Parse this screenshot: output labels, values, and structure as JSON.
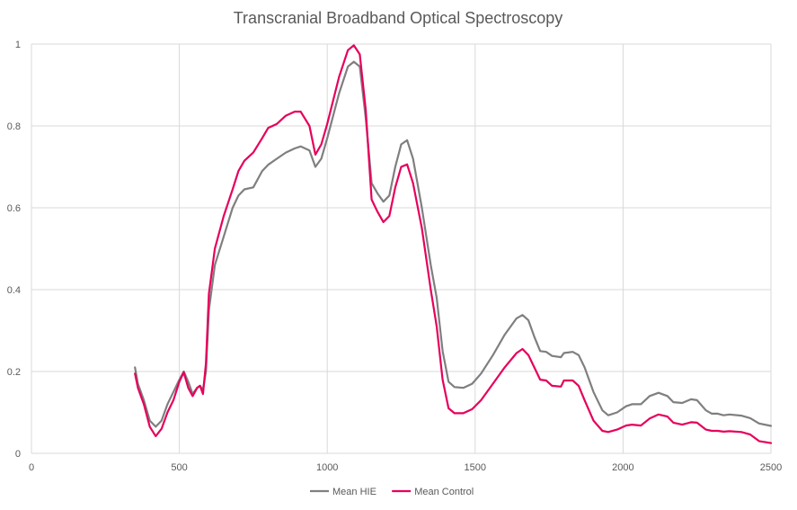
{
  "chart_data": {
    "type": "line",
    "title": "Transcranial Broadband Optical Spectroscopy",
    "xlabel": "",
    "ylabel": "",
    "xlim": [
      0,
      2500
    ],
    "ylim": [
      0,
      1
    ],
    "x_ticks": [
      0,
      500,
      1000,
      1500,
      2000,
      2500
    ],
    "y_ticks": [
      0,
      0.2,
      0.4,
      0.6,
      0.8,
      1
    ],
    "x_tick_labels": [
      "0",
      "500",
      "1000",
      "1500",
      "2000",
      "2500"
    ],
    "y_tick_labels": [
      "0",
      "0.2",
      "0.4",
      "0.6",
      "0.8",
      "1"
    ],
    "grid": true,
    "legend_position": "bottom",
    "series": [
      {
        "name": "Mean HIE",
        "color": "#7f7f7f",
        "points": [
          [
            350,
            0.21
          ],
          [
            360,
            0.17
          ],
          [
            380,
            0.13
          ],
          [
            400,
            0.08
          ],
          [
            420,
            0.065
          ],
          [
            440,
            0.08
          ],
          [
            460,
            0.12
          ],
          [
            480,
            0.15
          ],
          [
            500,
            0.18
          ],
          [
            515,
            0.2
          ],
          [
            530,
            0.175
          ],
          [
            545,
            0.145
          ],
          [
            560,
            0.16
          ],
          [
            570,
            0.165
          ],
          [
            580,
            0.155
          ],
          [
            590,
            0.2
          ],
          [
            600,
            0.35
          ],
          [
            620,
            0.46
          ],
          [
            650,
            0.53
          ],
          [
            680,
            0.6
          ],
          [
            700,
            0.63
          ],
          [
            720,
            0.645
          ],
          [
            750,
            0.65
          ],
          [
            780,
            0.69
          ],
          [
            800,
            0.705
          ],
          [
            830,
            0.72
          ],
          [
            860,
            0.735
          ],
          [
            890,
            0.745
          ],
          [
            910,
            0.75
          ],
          [
            940,
            0.74
          ],
          [
            960,
            0.7
          ],
          [
            980,
            0.72
          ],
          [
            1000,
            0.77
          ],
          [
            1040,
            0.88
          ],
          [
            1070,
            0.945
          ],
          [
            1090,
            0.957
          ],
          [
            1110,
            0.945
          ],
          [
            1130,
            0.82
          ],
          [
            1150,
            0.66
          ],
          [
            1170,
            0.635
          ],
          [
            1190,
            0.615
          ],
          [
            1210,
            0.63
          ],
          [
            1230,
            0.7
          ],
          [
            1250,
            0.755
          ],
          [
            1270,
            0.765
          ],
          [
            1290,
            0.72
          ],
          [
            1320,
            0.6
          ],
          [
            1350,
            0.46
          ],
          [
            1370,
            0.38
          ],
          [
            1390,
            0.25
          ],
          [
            1410,
            0.175
          ],
          [
            1430,
            0.162
          ],
          [
            1460,
            0.16
          ],
          [
            1490,
            0.17
          ],
          [
            1520,
            0.195
          ],
          [
            1560,
            0.24
          ],
          [
            1600,
            0.29
          ],
          [
            1640,
            0.33
          ],
          [
            1660,
            0.338
          ],
          [
            1680,
            0.325
          ],
          [
            1700,
            0.285
          ],
          [
            1720,
            0.25
          ],
          [
            1740,
            0.248
          ],
          [
            1760,
            0.238
          ],
          [
            1790,
            0.235
          ],
          [
            1800,
            0.245
          ],
          [
            1830,
            0.248
          ],
          [
            1850,
            0.24
          ],
          [
            1870,
            0.21
          ],
          [
            1900,
            0.15
          ],
          [
            1930,
            0.105
          ],
          [
            1950,
            0.093
          ],
          [
            1980,
            0.1
          ],
          [
            2010,
            0.115
          ],
          [
            2030,
            0.12
          ],
          [
            2060,
            0.12
          ],
          [
            2090,
            0.14
          ],
          [
            2120,
            0.148
          ],
          [
            2150,
            0.14
          ],
          [
            2170,
            0.125
          ],
          [
            2200,
            0.123
          ],
          [
            2230,
            0.132
          ],
          [
            2250,
            0.13
          ],
          [
            2280,
            0.105
          ],
          [
            2300,
            0.097
          ],
          [
            2320,
            0.097
          ],
          [
            2340,
            0.093
          ],
          [
            2360,
            0.095
          ],
          [
            2400,
            0.092
          ],
          [
            2430,
            0.086
          ],
          [
            2460,
            0.073
          ],
          [
            2500,
            0.067
          ]
        ]
      },
      {
        "name": "Mean Control",
        "color": "#e6005c",
        "points": [
          [
            350,
            0.195
          ],
          [
            360,
            0.16
          ],
          [
            380,
            0.12
          ],
          [
            400,
            0.065
          ],
          [
            420,
            0.042
          ],
          [
            440,
            0.06
          ],
          [
            460,
            0.1
          ],
          [
            480,
            0.13
          ],
          [
            500,
            0.175
          ],
          [
            515,
            0.198
          ],
          [
            530,
            0.16
          ],
          [
            545,
            0.14
          ],
          [
            560,
            0.16
          ],
          [
            570,
            0.165
          ],
          [
            580,
            0.145
          ],
          [
            590,
            0.22
          ],
          [
            600,
            0.39
          ],
          [
            620,
            0.5
          ],
          [
            650,
            0.58
          ],
          [
            680,
            0.645
          ],
          [
            700,
            0.69
          ],
          [
            720,
            0.715
          ],
          [
            750,
            0.735
          ],
          [
            780,
            0.77
          ],
          [
            800,
            0.795
          ],
          [
            830,
            0.805
          ],
          [
            860,
            0.825
          ],
          [
            890,
            0.835
          ],
          [
            910,
            0.835
          ],
          [
            940,
            0.8
          ],
          [
            960,
            0.73
          ],
          [
            980,
            0.755
          ],
          [
            1000,
            0.805
          ],
          [
            1040,
            0.92
          ],
          [
            1070,
            0.985
          ],
          [
            1090,
            0.997
          ],
          [
            1110,
            0.975
          ],
          [
            1130,
            0.84
          ],
          [
            1150,
            0.62
          ],
          [
            1170,
            0.59
          ],
          [
            1190,
            0.565
          ],
          [
            1210,
            0.58
          ],
          [
            1230,
            0.65
          ],
          [
            1250,
            0.7
          ],
          [
            1270,
            0.706
          ],
          [
            1290,
            0.66
          ],
          [
            1320,
            0.55
          ],
          [
            1350,
            0.4
          ],
          [
            1370,
            0.31
          ],
          [
            1390,
            0.18
          ],
          [
            1410,
            0.11
          ],
          [
            1430,
            0.098
          ],
          [
            1460,
            0.098
          ],
          [
            1490,
            0.108
          ],
          [
            1520,
            0.13
          ],
          [
            1560,
            0.17
          ],
          [
            1600,
            0.21
          ],
          [
            1640,
            0.245
          ],
          [
            1660,
            0.255
          ],
          [
            1680,
            0.24
          ],
          [
            1700,
            0.21
          ],
          [
            1720,
            0.18
          ],
          [
            1740,
            0.178
          ],
          [
            1760,
            0.165
          ],
          [
            1790,
            0.163
          ],
          [
            1800,
            0.178
          ],
          [
            1830,
            0.178
          ],
          [
            1850,
            0.165
          ],
          [
            1870,
            0.13
          ],
          [
            1900,
            0.08
          ],
          [
            1930,
            0.055
          ],
          [
            1950,
            0.052
          ],
          [
            1980,
            0.058
          ],
          [
            2010,
            0.068
          ],
          [
            2030,
            0.07
          ],
          [
            2060,
            0.068
          ],
          [
            2090,
            0.085
          ],
          [
            2120,
            0.095
          ],
          [
            2150,
            0.09
          ],
          [
            2170,
            0.075
          ],
          [
            2200,
            0.07
          ],
          [
            2230,
            0.076
          ],
          [
            2250,
            0.075
          ],
          [
            2280,
            0.058
          ],
          [
            2300,
            0.055
          ],
          [
            2320,
            0.055
          ],
          [
            2340,
            0.053
          ],
          [
            2360,
            0.054
          ],
          [
            2400,
            0.052
          ],
          [
            2430,
            0.046
          ],
          [
            2460,
            0.03
          ],
          [
            2500,
            0.025
          ]
        ]
      }
    ]
  }
}
